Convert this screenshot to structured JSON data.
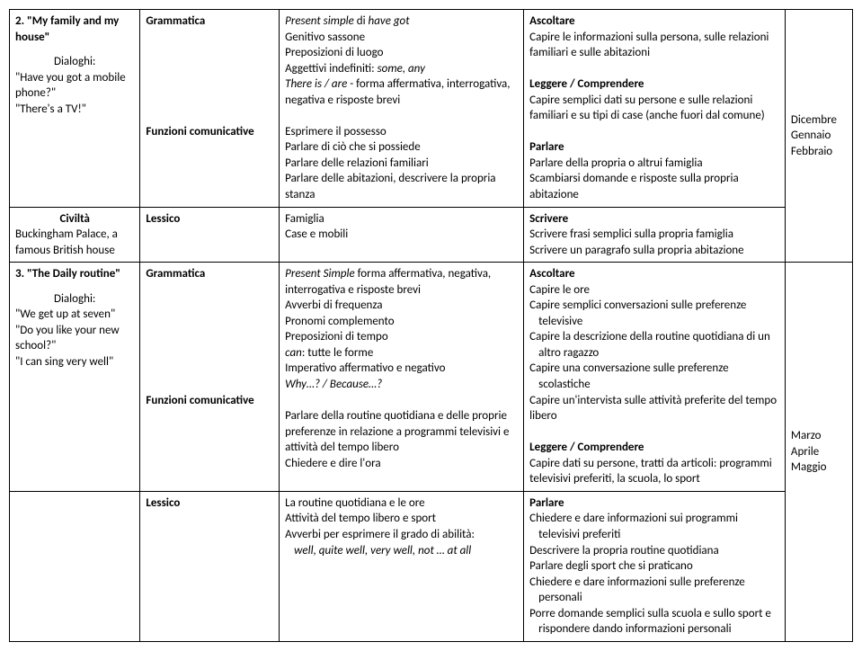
{
  "row1": {
    "col1": {
      "title": "2. \"My family and my house\"",
      "dialoghi_label": "Dialoghi:",
      "d1": "\"Have you got a mobile phone?\"",
      "d2": "\"There's a TV!\""
    },
    "col2": {
      "g": "Grammatica",
      "f": "Funzioni comunicative"
    },
    "col3": {
      "g1": "Present simple",
      "g1b": " di ",
      "g1c": "have got",
      "g2": "Genitivo sassone",
      "g3": "Preposizioni di luogo",
      "g4a": "Aggettivi indefiniti: ",
      "g4b": "some, any",
      "g5a": "There is / are",
      "g5b": " - forma affermativa, interrogativa, negativa e risposte brevi",
      "f1": "Esprimere il possesso",
      "f2": "Parlare di ciò che si possiede",
      "f3": "Parlare delle relazioni familiari",
      "f4": "Parlare delle abitazioni, descrivere la propria stanza"
    },
    "col4": {
      "a": "Ascoltare",
      "a1": "Capire le informazioni sulla persona,  sulle relazioni familiari e sulle abitazioni",
      "l": "Leggere / Comprendere",
      "l1": "Capire semplici dati su persone e sulle relazioni familiari e su tipi di  case (anche fuori dal comune)",
      "p": "Parlare",
      "p1": "Parlare della propria o altrui famiglia",
      "p2": "Scambiarsi domande e risposte sulla propria abitazione"
    },
    "col5": {
      "m1": "Dicembre",
      "m2": "Gennaio",
      "m3": "Febbraio"
    }
  },
  "row2": {
    "col1": {
      "civ": "Civiltà",
      "t": "Buckingham Palace, a famous British house"
    },
    "col2": {
      "l": "Lessico"
    },
    "col3": {
      "t1": "Famiglia",
      "t2": "Case e mobili"
    },
    "col4": {
      "s": "Scrivere",
      "s1": "Scrivere frasi semplici sulla propria famiglia",
      "s2": "Scrivere un paragrafo sulla propria abitazione"
    }
  },
  "row3": {
    "col1": {
      "title": "3. \"The Daily routine\"",
      "dialoghi_label": "Dialoghi:",
      "d1": "\"We get up at seven\"",
      "d2": "\"Do you like your new school?\"",
      "d3": "\"I can sing very well\""
    },
    "col2": {
      "g": "Grammatica",
      "f": "Funzioni comunicative"
    },
    "col3": {
      "g1a": "Present Simple",
      "g1b": " forma affermativa, negativa, interrogativa e risposte brevi",
      "g2": "Avverbi di frequenza",
      "g3": "Pronomi complemento",
      "g4": "Preposizioni di tempo",
      "g5a": "can",
      "g5b": ": tutte le forme",
      "g6": "Imperativo affermativo e negativo",
      "g7": "Why…? / Because…?",
      "f1": "Parlare della routine quotidiana e delle proprie preferenze in relazione a programmi televisivi e attività del tempo libero",
      "f2": "Chiedere e dire l'ora"
    },
    "col4": {
      "a": "Ascoltare",
      "a1": "Capire le ore",
      "a2": "Capire semplici conversazioni sulle preferenze",
      "a2i": "televisive",
      "a3": "Capire la descrizione della routine quotidiana di un",
      "a3i": "altro ragazzo",
      "a4": "Capire una conversazione sulle preferenze",
      "a4i": "scolastiche",
      "a5": "Capire un'intervista sulle attività preferite del tempo libero",
      "l": "Leggere / Comprendere",
      "l1": "Capire dati su persone, tratti da articoli: programmi televisivi preferiti, la scuola, lo sport"
    },
    "col5": {
      "m1": "Marzo",
      "m2": "Aprile",
      "m3": "Maggio"
    }
  },
  "row4": {
    "col2": {
      "l": "Lessico"
    },
    "col3": {
      "t1": "La routine quotidiana e le ore",
      "t2": "Attività del tempo libero e sport",
      "t3": "Avverbi per esprimere il grado di abilità:",
      "t3i": "well, quite well, very well, not … at all"
    },
    "col4": {
      "p": "Parlare",
      "p1": "Chiedere e dare informazioni sui programmi",
      "p1i": "televisivi preferiti",
      "p2": "Descrivere la propria routine quotidiana",
      "p3": "Parlare degli sport che si  praticano",
      "p4": "Chiedere e dare informazioni sulle preferenze",
      "p4i": "personali",
      "p5": "Porre domande semplici sulla scuola e sullo sport e",
      "p5i": "rispondere dando informazioni personali"
    }
  }
}
